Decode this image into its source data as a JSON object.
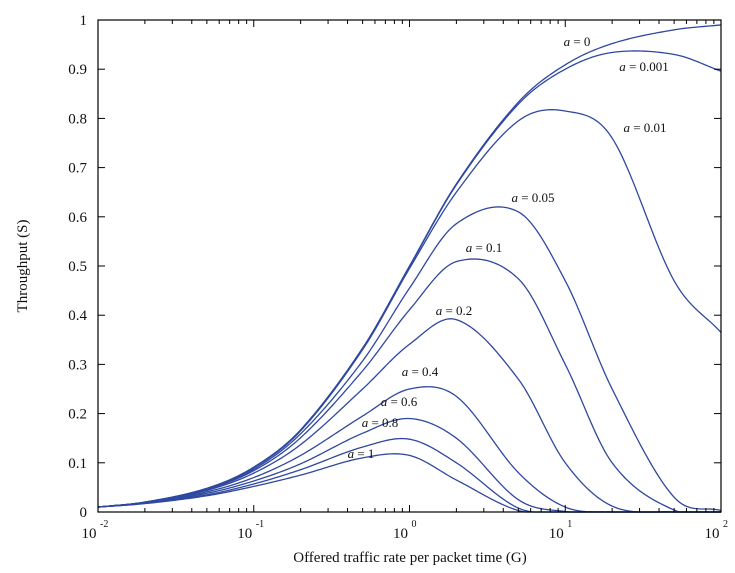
{
  "chart_data": {
    "type": "line",
    "title": "",
    "xlabel": "Offered traffic rate per packet time (G)",
    "ylabel": "Throughput (S)",
    "xscale": "log",
    "xlim": [
      0.01,
      100
    ],
    "ylim": [
      0,
      1
    ],
    "grid": false,
    "legend": "none (curves labeled inline)",
    "line_color": "#2f48a0",
    "x_ticks": [
      {
        "base": "10",
        "exp": "-2",
        "value": 0.01
      },
      {
        "base": "10",
        "exp": "-1",
        "value": 0.1
      },
      {
        "base": "10",
        "exp": "0",
        "value": 1
      },
      {
        "base": "10",
        "exp": "1",
        "value": 10
      },
      {
        "base": "10",
        "exp": "2",
        "value": 100
      }
    ],
    "y_ticks": [
      "0",
      "0.1",
      "0.2",
      "0.3",
      "0.4",
      "0.5",
      "0.6",
      "0.7",
      "0.8",
      "0.9",
      "1"
    ],
    "x": [
      0.01,
      0.02,
      0.05,
      0.1,
      0.2,
      0.5,
      1,
      2,
      5,
      10,
      20,
      50,
      100
    ],
    "series": [
      {
        "name": "a = 0",
        "a": 0,
        "values": [
          0.01,
          0.02,
          0.048,
          0.091,
          0.167,
          0.333,
          0.5,
          0.667,
          0.833,
          0.909,
          0.952,
          0.98,
          0.99
        ]
      },
      {
        "name": "a = 0.001",
        "a": 0.001,
        "values": [
          0.01,
          0.02,
          0.048,
          0.091,
          0.167,
          0.333,
          0.499,
          0.665,
          0.829,
          0.9,
          0.934,
          0.93,
          0.896
        ]
      },
      {
        "name": "a = 0.01",
        "a": 0.01,
        "values": [
          0.01,
          0.02,
          0.048,
          0.09,
          0.165,
          0.33,
          0.495,
          0.65,
          0.795,
          0.815,
          0.76,
          0.47,
          0.365
        ]
      },
      {
        "name": "a = 0.05",
        "a": 0.05,
        "values": [
          0.01,
          0.02,
          0.047,
          0.087,
          0.159,
          0.307,
          0.455,
          0.586,
          0.61,
          0.47,
          0.25,
          0.03,
          0.003
        ]
      },
      {
        "name": "a = 0.1",
        "a": 0.1,
        "values": [
          0.01,
          0.02,
          0.046,
          0.084,
          0.151,
          0.287,
          0.411,
          0.509,
          0.474,
          0.3,
          0.1,
          0.004,
          0.0
        ]
      },
      {
        "name": "a = 0.2",
        "a": 0.2,
        "values": [
          0.01,
          0.019,
          0.044,
          0.079,
          0.137,
          0.25,
          0.341,
          0.391,
          0.27,
          0.1,
          0.012,
          0.0,
          0.0
        ]
      },
      {
        "name": "a = 0.4",
        "a": 0.4,
        "values": [
          0.01,
          0.019,
          0.041,
          0.07,
          0.115,
          0.195,
          0.25,
          0.235,
          0.08,
          0.01,
          0.0,
          0.0,
          0.0
        ]
      },
      {
        "name": "a = 0.6",
        "a": 0.6,
        "values": [
          0.01,
          0.018,
          0.038,
          0.063,
          0.098,
          0.16,
          0.19,
          0.15,
          0.025,
          0.001,
          0.0,
          0.0,
          0.0
        ]
      },
      {
        "name": "a = 0.8",
        "a": 0.8,
        "values": [
          0.01,
          0.018,
          0.035,
          0.057,
          0.086,
          0.132,
          0.148,
          0.1,
          0.008,
          0.0,
          0.0,
          0.0,
          0.0
        ]
      },
      {
        "name": "a = 1",
        "a": 1,
        "values": [
          0.01,
          0.017,
          0.033,
          0.052,
          0.075,
          0.11,
          0.115,
          0.065,
          0.003,
          0.0,
          0.0,
          0.0,
          0.0
        ]
      }
    ]
  }
}
